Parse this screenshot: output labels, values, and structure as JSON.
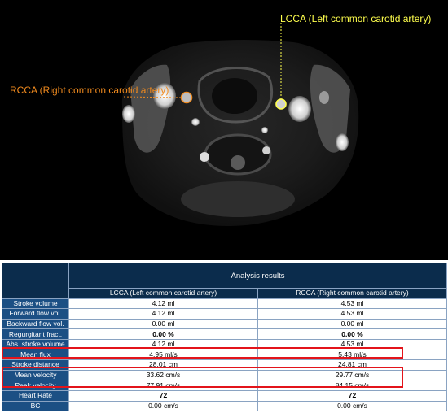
{
  "viewer": {
    "lcca_label": "LCCA (Left common carotid artery)",
    "rcca_label": "RCCA (Right common carotid artery)",
    "lcca_color": "#ffff4d",
    "rcca_color": "#f08a1e"
  },
  "table": {
    "title": "Analysis results",
    "columns": [
      "LCCA (Left common carotid artery)",
      "RCCA (Right common carotid artery)"
    ],
    "rows": [
      {
        "label": "Stroke volume",
        "lcca": "4.12 ml",
        "rcca": "4.53 ml"
      },
      {
        "label": "Forward flow vol.",
        "lcca": "4.12 ml",
        "rcca": "4.53 ml"
      },
      {
        "label": "Backward flow vol.",
        "lcca": "0.00 ml",
        "rcca": "0.00 ml"
      },
      {
        "label": "Regurgitant fract.",
        "lcca": "0.00 %",
        "rcca": "0.00 %"
      },
      {
        "label": "Abs. stroke volume",
        "lcca": "4.12 ml",
        "rcca": "4.53 ml"
      },
      {
        "label": "Mean flux",
        "lcca": "4.95 ml/s",
        "rcca": "5.43 ml/s"
      },
      {
        "label": "Stroke distance",
        "lcca": "28.01 cm",
        "rcca": "24.81 cm"
      },
      {
        "label": "Mean velocity",
        "lcca": "33.62 cm/s",
        "rcca": "29.77 cm/s"
      },
      {
        "label": "Peak velocity",
        "lcca": "77.91 cm/s",
        "rcca": "84.15 cm/s"
      },
      {
        "label": "Heart Rate",
        "lcca": "72",
        "rcca": "72"
      },
      {
        "label": "BC",
        "lcca": "0.00 cm/s",
        "rcca": "0.00 cm/s"
      }
    ],
    "highlight_color": "#e3141b"
  }
}
